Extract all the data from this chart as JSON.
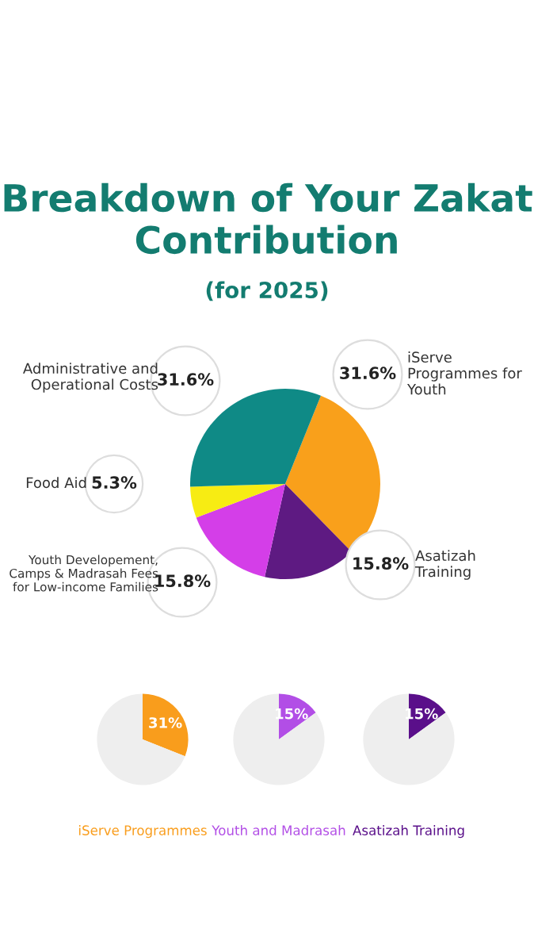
{
  "chart_data": [
    {
      "type": "pie",
      "title": "Breakdown of Your Zakat Contribution",
      "subtitle": "(for 2025)",
      "categories": [
        "iServe Programmes for Youth",
        "Asatizah Training",
        "Youth Developement, Camps & Madrasah Fees for Low-income Families",
        "Food Aid",
        "Administrative and Operational Costs"
      ],
      "values": [
        31.6,
        15.8,
        15.8,
        5.3,
        31.6
      ],
      "colors": [
        "#f9a01b",
        "#5e1a82",
        "#d43ee8",
        "#f7ec13",
        "#0f8a86"
      ],
      "value_labels": [
        "31.6%",
        "15.8%",
        "15.8%",
        "5.3%",
        "31.6%"
      ]
    },
    {
      "type": "pie",
      "title": "iServe Programmes",
      "categories": [
        null,
        null
      ],
      "values": [
        31,
        69
      ],
      "colors": [
        "#f99d1c",
        "#eeeeee"
      ],
      "value_labels": [
        "31%",
        null
      ]
    },
    {
      "type": "pie",
      "title": "Youth and Madrasah",
      "categories": [
        null,
        null
      ],
      "values": [
        15,
        85
      ],
      "colors": [
        "#b24ee6",
        "#eeeeee"
      ],
      "value_labels": [
        "15%",
        null
      ]
    },
    {
      "type": "pie",
      "title": "Asatizah Training",
      "categories": [
        null,
        null
      ],
      "values": [
        15,
        85
      ],
      "colors": [
        "#5a0f8a",
        "#eeeeee"
      ],
      "value_labels": [
        "15%",
        null
      ]
    }
  ]
}
